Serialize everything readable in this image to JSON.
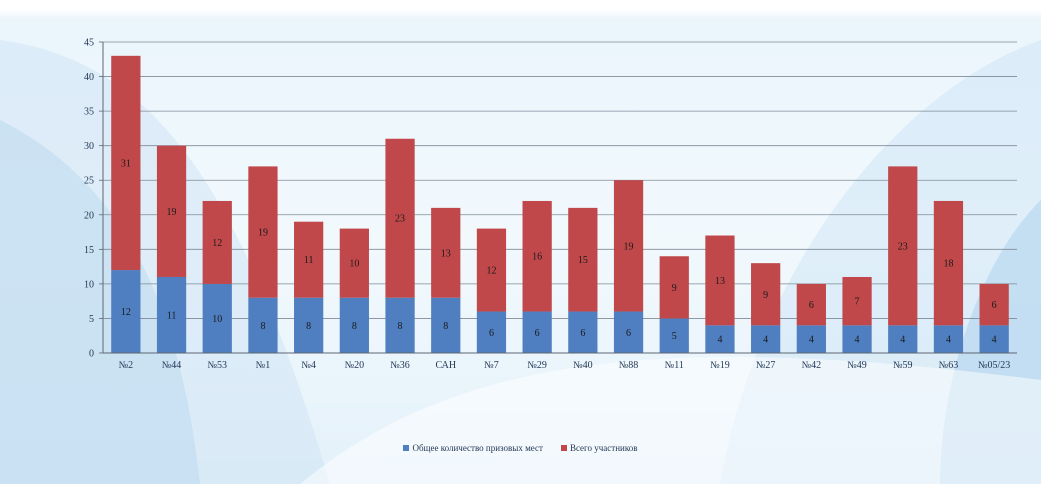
{
  "colors": {
    "series_blue": "#4f7fc0",
    "series_red": "#c0484a",
    "grid": "#7f8a97",
    "axis": "#5c6773"
  },
  "chart_data": {
    "type": "bar",
    "stacked": true,
    "categories": [
      "№2",
      "№44",
      "№53",
      "№1",
      "№4",
      "№20",
      "№36",
      "САН",
      "№7",
      "№29",
      "№40",
      "№88",
      "№11",
      "№19",
      "№27",
      "№42",
      "№49",
      "№59",
      "№63",
      "№05/23"
    ],
    "series": [
      {
        "name": "Общее количество призовых мест",
        "color": "#4f7fc0",
        "values": [
          12,
          11,
          10,
          8,
          8,
          8,
          8,
          8,
          6,
          6,
          6,
          6,
          5,
          4,
          4,
          4,
          4,
          4,
          4,
          4
        ]
      },
      {
        "name": "Всего участников",
        "color": "#c0484a",
        "values": [
          31,
          19,
          12,
          19,
          11,
          10,
          23,
          13,
          12,
          16,
          15,
          19,
          9,
          13,
          9,
          6,
          7,
          23,
          18,
          6
        ]
      }
    ],
    "ylim": [
      0,
      45
    ],
    "yticks": [
      0,
      5,
      10,
      15,
      20,
      25,
      30,
      35,
      40,
      45
    ],
    "grid": true,
    "legend_position": "bottom"
  }
}
